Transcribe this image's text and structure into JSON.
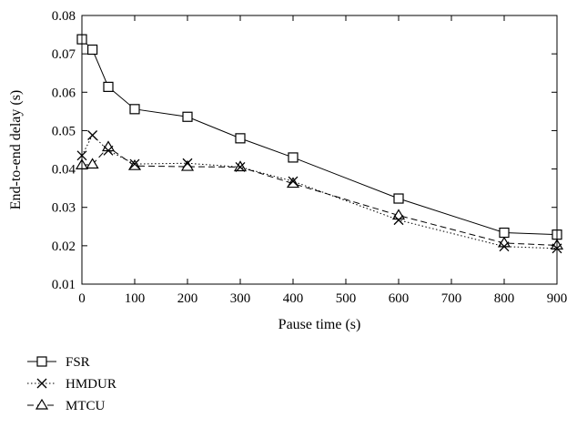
{
  "chart_data": {
    "type": "line",
    "xlabel": "Pause time (s)",
    "ylabel": "End-to-end delay (s)",
    "xlim": [
      0,
      900
    ],
    "ylim": [
      0.01,
      0.08
    ],
    "xticks": [
      0,
      100,
      200,
      300,
      400,
      500,
      600,
      700,
      800,
      900
    ],
    "yticks": [
      0.01,
      0.02,
      0.03,
      0.04,
      0.05,
      0.06,
      0.07,
      0.08
    ],
    "xtick_labels": [
      "0",
      "100",
      "200",
      "300",
      "400",
      "500",
      "600",
      "700",
      "800",
      "900"
    ],
    "ytick_labels": [
      "0.01",
      "0.02",
      "0.03",
      "0.04",
      "0.05",
      "0.06",
      "0.07",
      "0.08"
    ],
    "grid": false,
    "legend_position": "below-left",
    "series": [
      {
        "name": "FSR",
        "marker": "square",
        "line_style": "solid",
        "x": [
          0,
          20,
          50,
          100,
          200,
          300,
          400,
          600,
          800,
          900
        ],
        "y": [
          0.0738,
          0.0711,
          0.0614,
          0.0556,
          0.0536,
          0.048,
          0.043,
          0.0323,
          0.0234,
          0.0229
        ]
      },
      {
        "name": "HMDUR",
        "marker": "x",
        "line_style": "dotted",
        "x": [
          0,
          20,
          50,
          100,
          200,
          300,
          400,
          600,
          800,
          900
        ],
        "y": [
          0.0435,
          0.0488,
          0.0448,
          0.0413,
          0.0415,
          0.0405,
          0.0368,
          0.0267,
          0.0198,
          0.0193
        ]
      },
      {
        "name": "MTCU",
        "marker": "triangle",
        "line_style": "dashed",
        "x": [
          0,
          20,
          50,
          100,
          200,
          300,
          400,
          600,
          800,
          900
        ],
        "y": [
          0.041,
          0.0412,
          0.0457,
          0.0408,
          0.0406,
          0.0405,
          0.0362,
          0.0279,
          0.0207,
          0.0201
        ]
      }
    ]
  }
}
